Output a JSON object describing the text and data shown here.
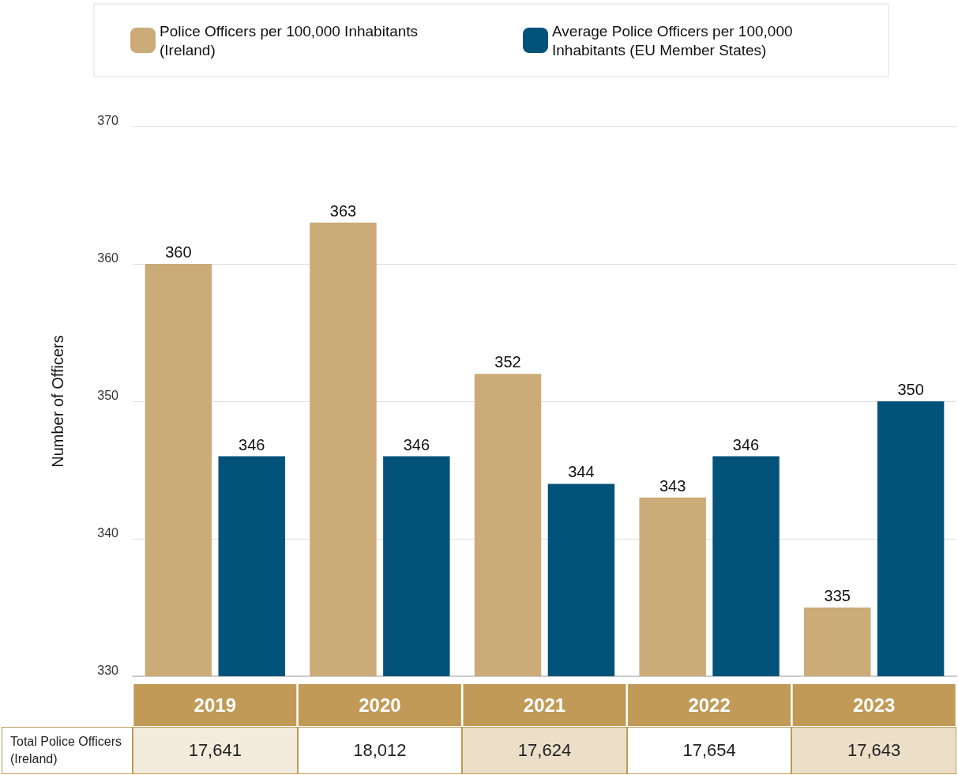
{
  "chart_data": {
    "type": "bar",
    "categories": [
      "2019",
      "2020",
      "2021",
      "2022",
      "2023"
    ],
    "series": [
      {
        "name": "Police Officers per 100,000 Inhabitants (Ireland)",
        "color": "#cbab77",
        "values": [
          360,
          363,
          352,
          343,
          335
        ]
      },
      {
        "name": "Average Police Officers per 100,000 Inhabitants (EU Member States)",
        "color": "#02527a",
        "values": [
          346,
          346,
          344,
          346,
          350
        ]
      }
    ],
    "ylabel": "Number of Officers",
    "ylim": [
      330,
      370
    ],
    "yticks": [
      330,
      340,
      350,
      360,
      370
    ],
    "grid": "y",
    "legend": "top",
    "data_labels": true,
    "annotations": [
      "Total Police Officers (Ireland)",
      "17,641",
      "18,012",
      "17,624",
      "17,654",
      "17,643"
    ]
  }
}
